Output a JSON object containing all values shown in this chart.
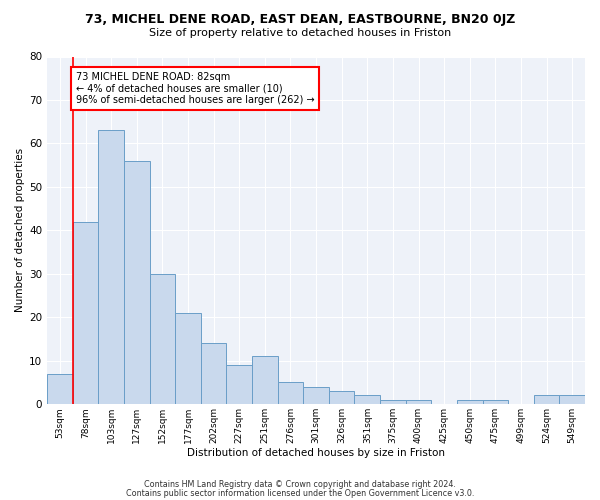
{
  "title1": "73, MICHEL DENE ROAD, EAST DEAN, EASTBOURNE, BN20 0JZ",
  "title2": "Size of property relative to detached houses in Friston",
  "xlabel": "Distribution of detached houses by size in Friston",
  "ylabel": "Number of detached properties",
  "bin_labels": [
    "53sqm",
    "78sqm",
    "103sqm",
    "127sqm",
    "152sqm",
    "177sqm",
    "202sqm",
    "227sqm",
    "251sqm",
    "276sqm",
    "301sqm",
    "326sqm",
    "351sqm",
    "375sqm",
    "400sqm",
    "425sqm",
    "450sqm",
    "475sqm",
    "499sqm",
    "524sqm",
    "549sqm"
  ],
  "bar_values": [
    7,
    42,
    63,
    56,
    30,
    21,
    14,
    9,
    11,
    5,
    4,
    3,
    2,
    1,
    1,
    0,
    1,
    1,
    0,
    2,
    2
  ],
  "bar_color": "#c9d9ed",
  "bar_edge_color": "#6a9ec8",
  "annotation_box_text": "73 MICHEL DENE ROAD: 82sqm\n← 4% of detached houses are smaller (10)\n96% of semi-detached houses are larger (262) →",
  "ylim": [
    0,
    80
  ],
  "yticks": [
    0,
    10,
    20,
    30,
    40,
    50,
    60,
    70,
    80
  ],
  "footer1": "Contains HM Land Registry data © Crown copyright and database right 2024.",
  "footer2": "Contains public sector information licensed under the Open Government Licence v3.0.",
  "bg_color": "#eef2f9",
  "grid_color": "white",
  "red_line_color": "red",
  "annotation_edge_color": "red"
}
